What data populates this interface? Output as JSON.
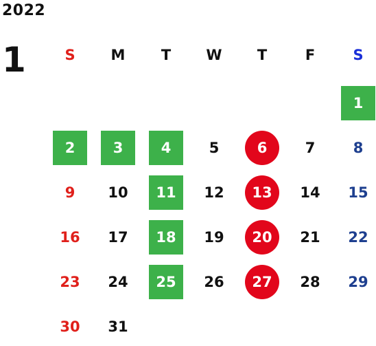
{
  "calendar": {
    "year": "2022",
    "month": "1",
    "weekdays": [
      "S",
      "M",
      "T",
      "W",
      "T",
      "F",
      "S"
    ],
    "first_day_offset": 6,
    "days": [
      {
        "d": "1",
        "style": "green"
      },
      {
        "d": "2",
        "style": "green"
      },
      {
        "d": "3",
        "style": "green"
      },
      {
        "d": "4",
        "style": "green"
      },
      {
        "d": "5",
        "style": "plain"
      },
      {
        "d": "6",
        "style": "red"
      },
      {
        "d": "7",
        "style": "plain"
      },
      {
        "d": "8",
        "style": "sat"
      },
      {
        "d": "9",
        "style": "sun"
      },
      {
        "d": "10",
        "style": "plain"
      },
      {
        "d": "11",
        "style": "green"
      },
      {
        "d": "12",
        "style": "plain"
      },
      {
        "d": "13",
        "style": "red"
      },
      {
        "d": "14",
        "style": "plain"
      },
      {
        "d": "15",
        "style": "sat"
      },
      {
        "d": "16",
        "style": "sun"
      },
      {
        "d": "17",
        "style": "plain"
      },
      {
        "d": "18",
        "style": "green"
      },
      {
        "d": "19",
        "style": "plain"
      },
      {
        "d": "20",
        "style": "red"
      },
      {
        "d": "21",
        "style": "plain"
      },
      {
        "d": "22",
        "style": "sat"
      },
      {
        "d": "23",
        "style": "sun"
      },
      {
        "d": "24",
        "style": "plain"
      },
      {
        "d": "25",
        "style": "green"
      },
      {
        "d": "26",
        "style": "plain"
      },
      {
        "d": "27",
        "style": "red"
      },
      {
        "d": "28",
        "style": "plain"
      },
      {
        "d": "29",
        "style": "sat"
      },
      {
        "d": "30",
        "style": "sun"
      },
      {
        "d": "31",
        "style": "plain"
      }
    ],
    "colors": {
      "green_highlight": "#3db14a",
      "red_highlight": "#e2061b",
      "sunday_text": "#e0201b",
      "saturday_text": "#1e3f8f",
      "saturday_header": "#1a2fd8",
      "default_text": "#111111"
    }
  }
}
